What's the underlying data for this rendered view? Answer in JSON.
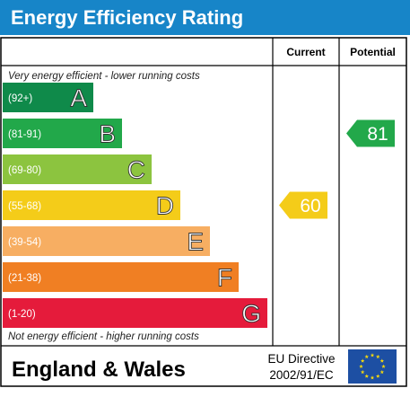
{
  "chart_data": {
    "type": "bar",
    "title": "Energy Efficiency Rating",
    "header_current": "Current",
    "header_potential": "Potential",
    "top_note": "Very energy efficient - lower running costs",
    "bottom_note": "Not energy efficient - higher running costs",
    "region": "England & Wales",
    "directive_line1": "EU Directive",
    "directive_line2": "2002/91/EC",
    "bands": [
      {
        "range": "(92+)",
        "letter": "A",
        "color": "#0f8a4a"
      },
      {
        "range": "(81-91)",
        "letter": "B",
        "color": "#22a84a"
      },
      {
        "range": "(69-80)",
        "letter": "C",
        "color": "#8cc43f"
      },
      {
        "range": "(55-68)",
        "letter": "D",
        "color": "#f4cc19"
      },
      {
        "range": "(39-54)",
        "letter": "E",
        "color": "#f7ae62"
      },
      {
        "range": "(21-38)",
        "letter": "F",
        "color": "#f07f23"
      },
      {
        "range": "(1-20)",
        "letter": "G",
        "color": "#e51b3b"
      }
    ],
    "current": {
      "value": 60,
      "band": "D",
      "color": "#f4cc19"
    },
    "potential": {
      "value": 81,
      "band": "B",
      "color": "#22a84a"
    },
    "colors": {
      "title_bar": "#1785c8",
      "title_text": "#ffffff",
      "eu_flag": "#1d4fa3",
      "eu_star": "#f5d80d",
      "border": "#000000"
    }
  }
}
